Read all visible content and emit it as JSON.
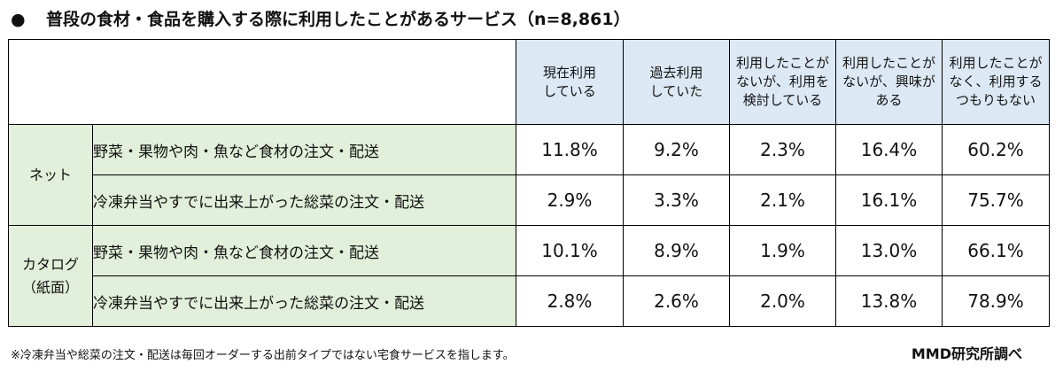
{
  "title": {
    "bullet": "●",
    "text": "普段の食材・食品を購入する際に利用したことがあるサービス（n=8,861）"
  },
  "columns": [
    [
      "現在利用",
      "している"
    ],
    [
      "過去利用",
      "していた"
    ],
    [
      "利用したことが",
      "ないが、利用を",
      "検討している"
    ],
    [
      "利用したことが",
      "ないが、興味が",
      "ある"
    ],
    [
      "利用したことが",
      "なく、利用する",
      "つもりもない"
    ]
  ],
  "groups": [
    {
      "label": [
        "ネット"
      ],
      "rows": [
        {
          "label": "野菜・果物や肉・魚など食材の注文・配送",
          "values": [
            "11.8%",
            "9.2%",
            "2.3%",
            "16.4%",
            "60.2%"
          ]
        },
        {
          "label": "冷凍弁当やすでに出来上がった総菜の注文・配送",
          "values": [
            "2.9%",
            "3.3%",
            "2.1%",
            "16.1%",
            "75.7%"
          ]
        }
      ]
    },
    {
      "label": [
        "カタログ",
        "（紙面）"
      ],
      "rows": [
        {
          "label": "野菜・果物や肉・魚など食材の注文・配送",
          "values": [
            "10.1%",
            "8.9%",
            "1.9%",
            "13.0%",
            "66.1%"
          ]
        },
        {
          "label": "冷凍弁当やすでに出来上がった総菜の注文・配送",
          "values": [
            "2.8%",
            "2.6%",
            "2.0%",
            "13.8%",
            "78.9%"
          ]
        }
      ]
    }
  ],
  "footnote": "※冷凍弁当や総菜の注文・配送は毎回オーダーする出前タイプではない宅食サービスを指します。",
  "source": "MMD研究所調べ"
}
